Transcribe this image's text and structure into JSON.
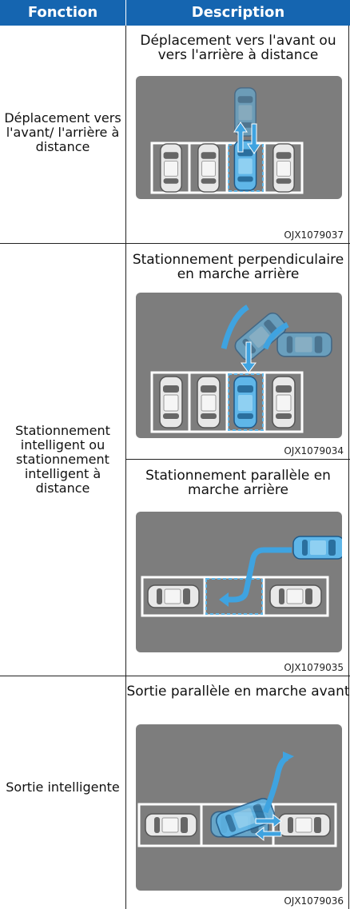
{
  "header": {
    "function": "Fonction",
    "description": "Description"
  },
  "rows": [
    {
      "function": "Déplacement vers l'avant/ l'arrière à distance",
      "items": [
        {
          "caption": "Déplacement vers l'avant ou vers l'arrière à distance",
          "code": "OJX1079037"
        }
      ]
    },
    {
      "function": "Stationnement intelligent ou stationnement intelligent à distance",
      "items": [
        {
          "caption": "Stationnement perpendiculaire en marche arrière",
          "code": "OJX1079034"
        },
        {
          "caption": "Stationnement parallèle en marche arrière",
          "code": "OJX1079035"
        }
      ]
    },
    {
      "function": "Sortie intelligente",
      "items": [
        {
          "caption": "Sortie parallèle en marche avant",
          "code": "OJX1079036"
        }
      ]
    }
  ]
}
